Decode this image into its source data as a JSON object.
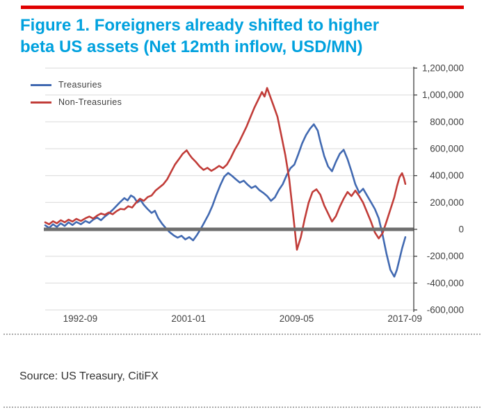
{
  "header": {
    "title_line1": "Figure 1. Foreigners already shifted to higher",
    "title_line2": "beta US assets (Net 12mth inflow, USD/MN)"
  },
  "footer": {
    "source": "Source: US Treasury, CitiFX"
  },
  "colors": {
    "top_bar": "#e00000",
    "title": "#00a1de",
    "text": "#404040",
    "grid": "#d9d9d9",
    "axis": "#404040",
    "zero_line": "#6e6e6e"
  },
  "chart_data": {
    "type": "line",
    "title": "Figure 1. Foreigners already shifted to higher beta US assets (Net 12mth inflow, USD/MN)",
    "xlabel": "",
    "ylabel": "",
    "grid": "horizontal",
    "legend_position": "top-left",
    "zero_line": true,
    "x_axis": {
      "range": [
        1990.0,
        2018.4
      ],
      "tick_labels": [
        "1992-09",
        "2001-01",
        "2009-05",
        "2017-09"
      ],
      "tick_positions": [
        1992.7,
        2001.05,
        2009.37,
        2017.71
      ]
    },
    "y_axis": {
      "min": -600000,
      "max": 1200000,
      "tick_step": 200000,
      "side": "right",
      "tick_labels": [
        "1,200,000",
        "1,000,000",
        "800,000",
        "600,000",
        "400,000",
        "200,000",
        "0",
        "-200,000",
        "-400,000",
        "-600,000"
      ]
    },
    "series": [
      {
        "name": "Treasuries",
        "color": "#4169b1",
        "data": [
          [
            1990.0,
            30000
          ],
          [
            1990.3,
            10000
          ],
          [
            1990.6,
            38000
          ],
          [
            1990.9,
            18000
          ],
          [
            1991.2,
            45000
          ],
          [
            1991.5,
            25000
          ],
          [
            1991.8,
            52000
          ],
          [
            1992.1,
            32000
          ],
          [
            1992.4,
            55000
          ],
          [
            1992.75,
            38000
          ],
          [
            1993.1,
            62000
          ],
          [
            1993.4,
            48000
          ],
          [
            1993.7,
            72000
          ],
          [
            1994.0,
            88000
          ],
          [
            1994.3,
            68000
          ],
          [
            1994.6,
            95000
          ],
          [
            1994.9,
            118000
          ],
          [
            1995.2,
            145000
          ],
          [
            1995.5,
            175000
          ],
          [
            1995.8,
            205000
          ],
          [
            1996.1,
            232000
          ],
          [
            1996.35,
            215000
          ],
          [
            1996.6,
            252000
          ],
          [
            1996.85,
            238000
          ],
          [
            1997.1,
            200000
          ],
          [
            1997.35,
            218000
          ],
          [
            1997.6,
            182000
          ],
          [
            1997.9,
            150000
          ],
          [
            1998.2,
            122000
          ],
          [
            1998.45,
            138000
          ],
          [
            1998.7,
            85000
          ],
          [
            1999.0,
            42000
          ],
          [
            1999.3,
            8000
          ],
          [
            1999.6,
            -22000
          ],
          [
            1999.9,
            -45000
          ],
          [
            2000.2,
            -62000
          ],
          [
            2000.5,
            -48000
          ],
          [
            2000.8,
            -75000
          ],
          [
            2001.1,
            -58000
          ],
          [
            2001.4,
            -82000
          ],
          [
            2001.7,
            -42000
          ],
          [
            2002.0,
            5000
          ],
          [
            2002.3,
            58000
          ],
          [
            2002.6,
            112000
          ],
          [
            2002.9,
            178000
          ],
          [
            2003.2,
            258000
          ],
          [
            2003.5,
            330000
          ],
          [
            2003.8,
            392000
          ],
          [
            2004.1,
            420000
          ],
          [
            2004.4,
            398000
          ],
          [
            2004.7,
            372000
          ],
          [
            2005.0,
            348000
          ],
          [
            2005.3,
            362000
          ],
          [
            2005.6,
            332000
          ],
          [
            2005.9,
            308000
          ],
          [
            2006.2,
            322000
          ],
          [
            2006.5,
            292000
          ],
          [
            2006.8,
            272000
          ],
          [
            2007.1,
            248000
          ],
          [
            2007.4,
            212000
          ],
          [
            2007.7,
            238000
          ],
          [
            2008.0,
            292000
          ],
          [
            2008.3,
            335000
          ],
          [
            2008.6,
            402000
          ],
          [
            2008.9,
            455000
          ],
          [
            2009.2,
            482000
          ],
          [
            2009.5,
            558000
          ],
          [
            2009.8,
            640000
          ],
          [
            2010.1,
            702000
          ],
          [
            2010.4,
            748000
          ],
          [
            2010.7,
            782000
          ],
          [
            2011.0,
            735000
          ],
          [
            2011.2,
            655000
          ],
          [
            2011.5,
            545000
          ],
          [
            2011.8,
            468000
          ],
          [
            2012.1,
            432000
          ],
          [
            2012.4,
            502000
          ],
          [
            2012.7,
            562000
          ],
          [
            2013.0,
            592000
          ],
          [
            2013.3,
            522000
          ],
          [
            2013.6,
            432000
          ],
          [
            2013.9,
            335000
          ],
          [
            2014.2,
            272000
          ],
          [
            2014.5,
            302000
          ],
          [
            2014.8,
            252000
          ],
          [
            2015.1,
            202000
          ],
          [
            2015.4,
            152000
          ],
          [
            2015.7,
            82000
          ],
          [
            2016.0,
            -42000
          ],
          [
            2016.3,
            -182000
          ],
          [
            2016.6,
            -302000
          ],
          [
            2016.9,
            -352000
          ],
          [
            2017.1,
            -302000
          ],
          [
            2017.3,
            -222000
          ],
          [
            2017.5,
            -142000
          ],
          [
            2017.75,
            -58000
          ]
        ]
      },
      {
        "name": "Non-Treasuries",
        "color": "#c13c38",
        "data": [
          [
            1990.0,
            52000
          ],
          [
            1990.3,
            38000
          ],
          [
            1990.6,
            60000
          ],
          [
            1990.9,
            45000
          ],
          [
            1991.2,
            68000
          ],
          [
            1991.5,
            52000
          ],
          [
            1991.8,
            72000
          ],
          [
            1992.1,
            58000
          ],
          [
            1992.4,
            78000
          ],
          [
            1992.75,
            62000
          ],
          [
            1993.1,
            82000
          ],
          [
            1993.4,
            95000
          ],
          [
            1993.7,
            80000
          ],
          [
            1994.0,
            102000
          ],
          [
            1994.3,
            118000
          ],
          [
            1994.6,
            108000
          ],
          [
            1994.9,
            125000
          ],
          [
            1995.2,
            112000
          ],
          [
            1995.5,
            135000
          ],
          [
            1995.8,
            152000
          ],
          [
            1996.1,
            148000
          ],
          [
            1996.4,
            172000
          ],
          [
            1996.7,
            162000
          ],
          [
            1997.0,
            198000
          ],
          [
            1997.3,
            228000
          ],
          [
            1997.6,
            212000
          ],
          [
            1997.9,
            240000
          ],
          [
            1998.2,
            252000
          ],
          [
            1998.5,
            288000
          ],
          [
            1998.8,
            312000
          ],
          [
            1999.1,
            335000
          ],
          [
            1999.4,
            372000
          ],
          [
            1999.7,
            428000
          ],
          [
            2000.0,
            482000
          ],
          [
            2000.3,
            522000
          ],
          [
            2000.6,
            562000
          ],
          [
            2000.9,
            588000
          ],
          [
            2001.1,
            558000
          ],
          [
            2001.3,
            532000
          ],
          [
            2001.6,
            502000
          ],
          [
            2001.9,
            468000
          ],
          [
            2002.2,
            442000
          ],
          [
            2002.5,
            458000
          ],
          [
            2002.8,
            435000
          ],
          [
            2003.1,
            452000
          ],
          [
            2003.4,
            472000
          ],
          [
            2003.7,
            455000
          ],
          [
            2004.0,
            482000
          ],
          [
            2004.3,
            532000
          ],
          [
            2004.6,
            592000
          ],
          [
            2004.9,
            642000
          ],
          [
            2005.2,
            702000
          ],
          [
            2005.5,
            762000
          ],
          [
            2005.8,
            832000
          ],
          [
            2006.1,
            902000
          ],
          [
            2006.4,
            962000
          ],
          [
            2006.7,
            1022000
          ],
          [
            2006.9,
            988000
          ],
          [
            2007.1,
            1052000
          ],
          [
            2007.3,
            998000
          ],
          [
            2007.6,
            918000
          ],
          [
            2007.9,
            838000
          ],
          [
            2008.2,
            698000
          ],
          [
            2008.5,
            555000
          ],
          [
            2008.8,
            378000
          ],
          [
            2009.1,
            118000
          ],
          [
            2009.4,
            -152000
          ],
          [
            2009.7,
            -58000
          ],
          [
            2010.0,
            78000
          ],
          [
            2010.3,
            198000
          ],
          [
            2010.6,
            278000
          ],
          [
            2010.9,
            298000
          ],
          [
            2011.2,
            258000
          ],
          [
            2011.5,
            178000
          ],
          [
            2011.8,
            118000
          ],
          [
            2012.1,
            58000
          ],
          [
            2012.4,
            98000
          ],
          [
            2012.7,
            168000
          ],
          [
            2013.0,
            228000
          ],
          [
            2013.3,
            278000
          ],
          [
            2013.6,
            248000
          ],
          [
            2013.9,
            288000
          ],
          [
            2014.2,
            248000
          ],
          [
            2014.5,
            198000
          ],
          [
            2014.8,
            128000
          ],
          [
            2015.1,
            58000
          ],
          [
            2015.4,
            -22000
          ],
          [
            2015.7,
            -68000
          ],
          [
            2016.0,
            -28000
          ],
          [
            2016.3,
            58000
          ],
          [
            2016.6,
            148000
          ],
          [
            2016.9,
            238000
          ],
          [
            2017.1,
            318000
          ],
          [
            2017.3,
            388000
          ],
          [
            2017.5,
            418000
          ],
          [
            2017.65,
            378000
          ],
          [
            2017.75,
            338000
          ]
        ]
      }
    ]
  }
}
